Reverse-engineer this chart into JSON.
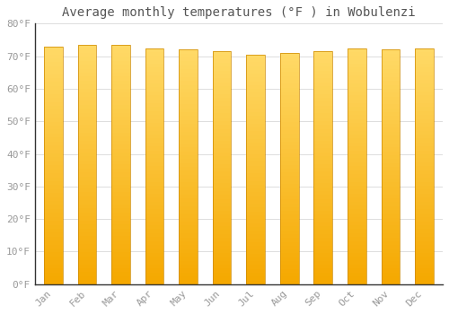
{
  "title": "Average monthly temperatures (°F ) in Wobulenzi",
  "months": [
    "Jan",
    "Feb",
    "Mar",
    "Apr",
    "May",
    "Jun",
    "Jul",
    "Aug",
    "Sep",
    "Oct",
    "Nov",
    "Dec"
  ],
  "values": [
    73,
    73.5,
    73.5,
    72.5,
    72,
    71.5,
    70.5,
    71,
    71.5,
    72.5,
    72,
    72.5
  ],
  "ylim": [
    0,
    80
  ],
  "yticks": [
    0,
    10,
    20,
    30,
    40,
    50,
    60,
    70,
    80
  ],
  "ytick_labels": [
    "0°F",
    "10°F",
    "20°F",
    "30°F",
    "40°F",
    "50°F",
    "60°F",
    "70°F",
    "80°F"
  ],
  "bar_color_bottom": "#F5A800",
  "bar_color_top": "#FFD966",
  "background_color": "#FFFFFF",
  "plot_bg_color": "#FFFFFF",
  "grid_color": "#DDDDDD",
  "title_fontsize": 10,
  "tick_fontsize": 8,
  "bar_width": 0.55,
  "title_color": "#555555",
  "tick_color": "#999999",
  "spine_color": "#333333"
}
